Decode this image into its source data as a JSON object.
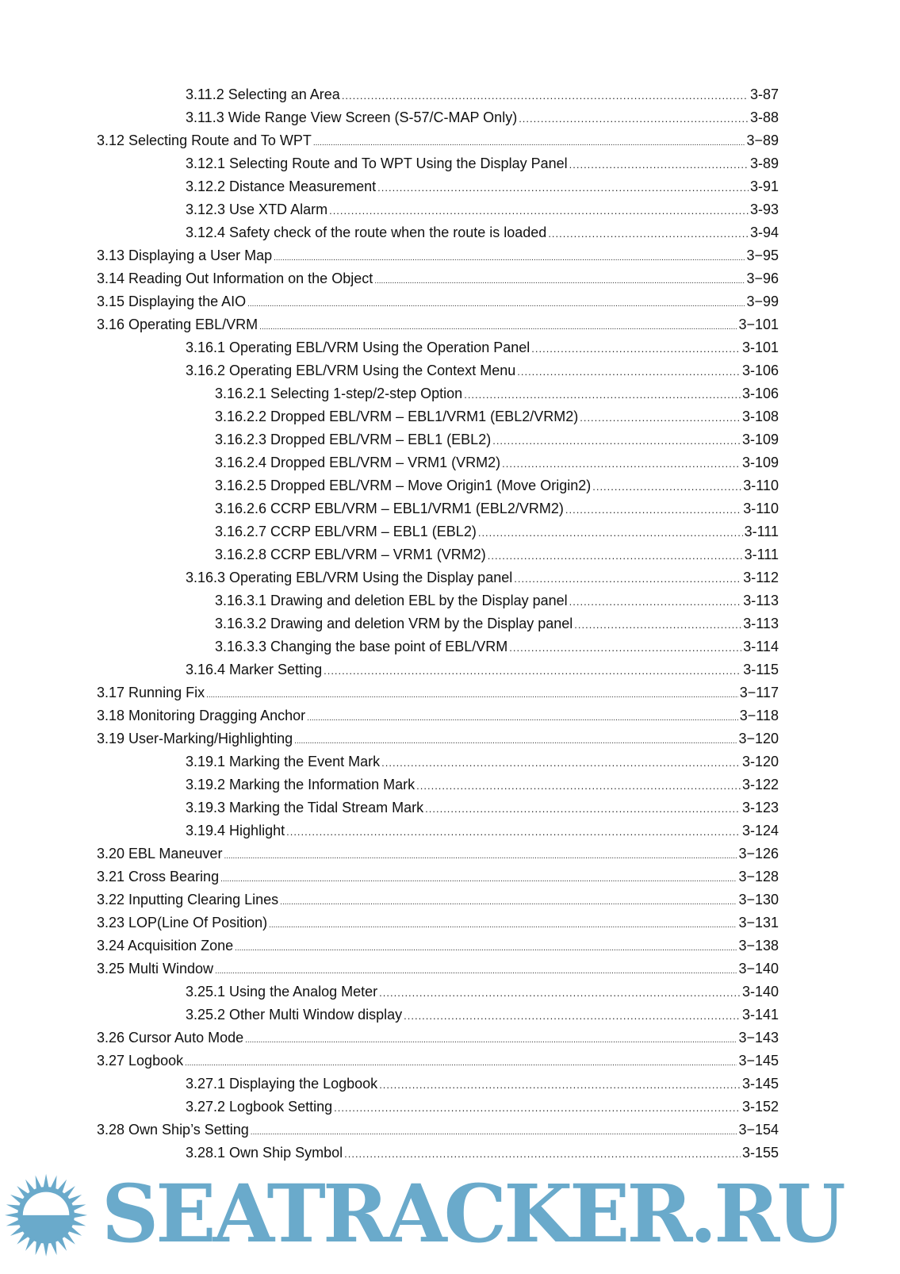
{
  "toc": [
    {
      "level": 2,
      "title": "3.11.2 Selecting an Area",
      "page": "3-87"
    },
    {
      "level": 2,
      "title": "3.11.3 Wide Range View Screen (S-57/C-MAP Only)",
      "page": "3-88"
    },
    {
      "level": 1,
      "title": "3.12 Selecting Route and To WPT",
      "page": "3−89"
    },
    {
      "level": 2,
      "title": "3.12.1 Selecting Route and To WPT Using the Display Panel",
      "page": "3-89"
    },
    {
      "level": 2,
      "title": "3.12.2 Distance Measurement",
      "page": "3-91"
    },
    {
      "level": 2,
      "title": "3.12.3 Use XTD Alarm",
      "page": "3-93"
    },
    {
      "level": 2,
      "title": "3.12.4 Safety check of the route when the route is loaded",
      "page": "3-94"
    },
    {
      "level": 1,
      "title": "3.13 Displaying a User Map",
      "page": "3−95"
    },
    {
      "level": 1,
      "title": "3.14 Reading Out Information on the Object",
      "page": "3−96"
    },
    {
      "level": 1,
      "title": "3.15 Displaying the AIO",
      "page": "3−99"
    },
    {
      "level": 1,
      "title": "3.16 Operating EBL/VRM",
      "page": "3−101"
    },
    {
      "level": 2,
      "title": "3.16.1 Operating EBL/VRM Using the Operation Panel",
      "page": "3-101"
    },
    {
      "level": 2,
      "title": "3.16.2 Operating EBL/VRM Using the Context Menu",
      "page": "3-106"
    },
    {
      "level": 3,
      "title": "3.16.2.1 Selecting 1-step/2-step Option",
      "page": "3-106"
    },
    {
      "level": 3,
      "title": "3.16.2.2 Dropped EBL/VRM – EBL1/VRM1 (EBL2/VRM2)",
      "page": "3-108"
    },
    {
      "level": 3,
      "title": "3.16.2.3 Dropped EBL/VRM – EBL1 (EBL2)",
      "page": "3-109"
    },
    {
      "level": 3,
      "title": "3.16.2.4 Dropped EBL/VRM – VRM1 (VRM2)",
      "page": "3-109"
    },
    {
      "level": 3,
      "title": "3.16.2.5 Dropped EBL/VRM – Move Origin1 (Move Origin2)",
      "page": "3-110"
    },
    {
      "level": 3,
      "title": "3.16.2.6 CCRP EBL/VRM – EBL1/VRM1 (EBL2/VRM2)",
      "page": "3-110"
    },
    {
      "level": 3,
      "title": "3.16.2.7 CCRP EBL/VRM – EBL1 (EBL2)",
      "page": "3-111"
    },
    {
      "level": 3,
      "title": "3.16.2.8 CCRP EBL/VRM – VRM1 (VRM2)",
      "page": "3-111"
    },
    {
      "level": 2,
      "title": "3.16.3 Operating EBL/VRM Using the Display panel",
      "page": "3-112"
    },
    {
      "level": 3,
      "title": "3.16.3.1 Drawing and deletion EBL by the Display panel",
      "page": "3-113"
    },
    {
      "level": 3,
      "title": "3.16.3.2 Drawing and deletion VRM by the Display panel",
      "page": "3-113"
    },
    {
      "level": 3,
      "title": "3.16.3.3 Changing the base point of EBL/VRM",
      "page": "3-114"
    },
    {
      "level": 2,
      "title": "3.16.4 Marker Setting",
      "page": "3-115"
    },
    {
      "level": 1,
      "title": "3.17 Running Fix",
      "page": "3−117"
    },
    {
      "level": 1,
      "title": "3.18 Monitoring Dragging Anchor",
      "page": "3−118"
    },
    {
      "level": 1,
      "title": "3.19 User-Marking/Highlighting",
      "page": "3−120"
    },
    {
      "level": 2,
      "title": "3.19.1 Marking the Event Mark",
      "page": "3-120"
    },
    {
      "level": 2,
      "title": "3.19.2 Marking the Information Mark",
      "page": "3-122"
    },
    {
      "level": 2,
      "title": "3.19.3 Marking the Tidal Stream Mark",
      "page": "3-123"
    },
    {
      "level": 2,
      "title": "3.19.4 Highlight",
      "page": "3-124"
    },
    {
      "level": 1,
      "title": "3.20 EBL Maneuver",
      "page": "3−126"
    },
    {
      "level": 1,
      "title": "3.21 Cross Bearing",
      "page": "3−128"
    },
    {
      "level": 1,
      "title": "3.22 Inputting Clearing Lines",
      "page": "3−130"
    },
    {
      "level": 1,
      "title": "3.23 LOP(Line Of Position)",
      "page": "3−131"
    },
    {
      "level": 1,
      "title": "3.24 Acquisition Zone",
      "page": "3−138"
    },
    {
      "level": 1,
      "title": "3.25 Multi Window",
      "page": "3−140"
    },
    {
      "level": 2,
      "title": "3.25.1 Using the Analog Meter",
      "page": "3-140"
    },
    {
      "level": 2,
      "title": "3.25.2 Other Multi Window display",
      "page": "3-141"
    },
    {
      "level": 1,
      "title": "3.26 Cursor Auto Mode",
      "page": "3−143"
    },
    {
      "level": 1,
      "title": "3.27 Logbook",
      "page": "3−145"
    },
    {
      "level": 2,
      "title": "3.27.1 Displaying the Logbook",
      "page": "3-145"
    },
    {
      "level": 2,
      "title": "3.27.2 Logbook Setting",
      "page": "3-152"
    },
    {
      "level": 1,
      "title": "3.28 Own Ship’s Setting",
      "page": "3−154"
    },
    {
      "level": 2,
      "title": "3.28.1 Own Ship Symbol",
      "page": "3-155"
    }
  ],
  "watermark": {
    "text": "SEATRACKER.RU",
    "color": "#6aaacb"
  }
}
